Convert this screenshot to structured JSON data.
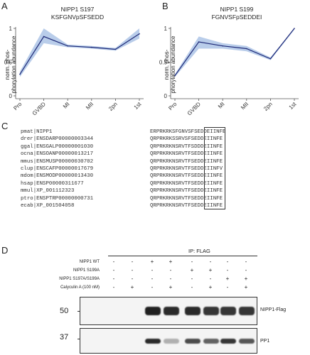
{
  "panels": {
    "A": {
      "letter": "A",
      "title_line1": "NIPP1 S197",
      "title_line2": "KSFGNVpSFSEDD",
      "ylabel_line1": "norm. phos-",
      "ylabel_line2": "phorylation abundance"
    },
    "B": {
      "letter": "B",
      "title_line1": "NIPP1 S199",
      "title_line2": "FGNVSFpSEDDEI",
      "ylabel_line1": "norm. phos-",
      "ylabel_line2": "phorylation abundance"
    },
    "C": {
      "letter": "C",
      "alignment": [
        {
          "id": "pmat|NIPP1",
          "seq": "ERPRKRKSFGNVSFSEDDEIINFE"
        },
        {
          "id": "drer|ENSDARP00000003344",
          "seq": "QRPRKRKSSRVSFSEDDEIINFE"
        },
        {
          "id": "ggal|ENSGALP00000001030",
          "seq": "QRPRKRKNSRVTFSDDDEIINFE"
        },
        {
          "id": "ocna|ENSOANP00000013217",
          "seq": "QRPRKRKNSRVTFSEDDEIINFE"
        },
        {
          "id": "mmus|ENSMUSP00000030702",
          "seq": "QRPRKRKNSRVTFSEDDEIINFE"
        },
        {
          "id": "clup|ENSCAFP00000017679",
          "seq": "QRPRKRKNSRVTFSEDDEIINFV"
        },
        {
          "id": "mdom|ENSMODP00000013430",
          "seq": "QRPRKRKNSRVTFSEDDEIINFE"
        },
        {
          "id": "hsap|ENSP00000311677",
          "seq": "QRPRKRKNSRVTFSEDDEIINFE"
        },
        {
          "id": "mmul|XP_001112323",
          "seq": "QRPRKRKNSRVTFSEDDEIINFE"
        },
        {
          "id": "ptro|ENSPTRP00000000731",
          "seq": "QRPRKRKNSRVTFSEDDEIINFE"
        },
        {
          "id": "ecab|XP_001504058",
          "seq": "QRPRKRKNSRVTFSEDDEIINFE"
        }
      ]
    },
    "D": {
      "letter": "D",
      "ip_label": "IP: FLAG",
      "conditions": [
        {
          "label": "NIPP1 WT",
          "signs": [
            "-",
            "-",
            "+",
            "+",
            "-",
            "-",
            "-",
            "-"
          ]
        },
        {
          "label": "NIPP1 S199A",
          "signs": [
            "-",
            "-",
            "-",
            "-",
            "+",
            "+",
            "-",
            "-"
          ]
        },
        {
          "label": "NIPP1 S197A/S199A",
          "signs": [
            "-",
            "-",
            "-",
            "-",
            "-",
            "-",
            "+",
            "+"
          ]
        },
        {
          "label": "Calyculin A (100 nM)",
          "signs": [
            "-",
            "+",
            "-",
            "+",
            "-",
            "+",
            "-",
            "+"
          ]
        }
      ],
      "blots": [
        {
          "label": "NIPP1-Flag",
          "mw": "50",
          "intensities": [
            0,
            0,
            0.95,
            0.9,
            0.9,
            0.85,
            0.85,
            0.85
          ]
        },
        {
          "label": "PP1",
          "mw": "37",
          "intensities": [
            0,
            0,
            0.9,
            0.3,
            0.75,
            0.65,
            0.85,
            0.7
          ]
        }
      ]
    }
  },
  "chart_data": [
    {
      "type": "line",
      "title": "NIPP1 S197 KSFGNVpSFSEDD",
      "ylabel": "norm. phos- phorylation abundance",
      "categories": [
        "Pro",
        "GVBD",
        "MI",
        "MII",
        "2pn",
        "1st"
      ],
      "values": [
        0.32,
        0.88,
        0.74,
        0.72,
        0.69,
        0.92
      ],
      "band_low": [
        0.28,
        0.78,
        0.72,
        0.7,
        0.67,
        0.85
      ],
      "band_high": [
        0.36,
        1.0,
        0.76,
        0.74,
        0.71,
        1.0
      ],
      "yticks": [
        0,
        0.5,
        1
      ],
      "ylim": [
        0,
        1.0
      ],
      "line_color": "#1f2a78",
      "band_color": "#b9cdea"
    },
    {
      "type": "line",
      "title": "NIPP1 S199 FGNVSFpSEDDEI",
      "ylabel": "norm. phos- phorylation abundance",
      "categories": [
        "Pro",
        "GVBD",
        "MI",
        "MII",
        "2pn",
        "1st"
      ],
      "values": [
        0.3,
        0.8,
        0.74,
        0.7,
        0.55,
        1.0
      ],
      "band_low": [
        0.28,
        0.7,
        0.7,
        0.66,
        0.53,
        0.98
      ],
      "band_high": [
        0.32,
        0.88,
        0.78,
        0.74,
        0.57,
        1.0
      ],
      "yticks": [
        0,
        0.5,
        1
      ],
      "ylim": [
        0,
        1.0
      ],
      "line_color": "#1f2a78",
      "band_color": "#b9cdea"
    }
  ]
}
